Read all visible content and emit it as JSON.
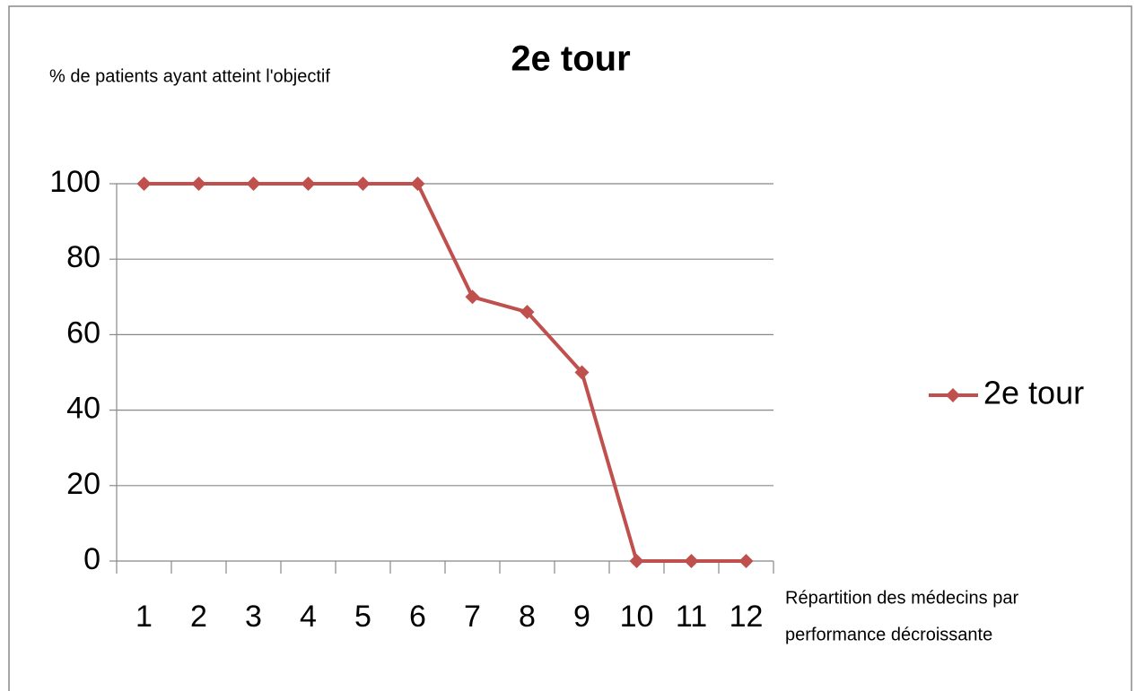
{
  "chart_data": {
    "type": "line",
    "title": "2e tour",
    "ylabel": "% de patients ayant atteint l'objectif",
    "xlabel": [
      "Répartition des médecins par",
      "performance  décroissante"
    ],
    "categories": [
      "1",
      "2",
      "3",
      "4",
      "5",
      "6",
      "7",
      "8",
      "9",
      "10",
      "11",
      "12"
    ],
    "series": [
      {
        "name": "2e tour",
        "color": "#c0504d",
        "values": [
          100,
          100,
          100,
          100,
          100,
          100,
          70,
          66,
          50,
          0,
          0,
          0
        ]
      }
    ],
    "ylim": [
      0,
      100
    ],
    "yticks": [
      0,
      20,
      40,
      60,
      80,
      100
    ],
    "grid": true,
    "legend": "right"
  }
}
